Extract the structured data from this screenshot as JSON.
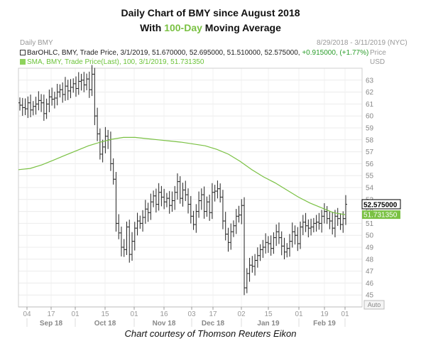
{
  "header": {
    "title_line1": "Daily Chart of BMY since August 2018",
    "title_line2_pre": "With ",
    "title_line2_highlight": "100-Day",
    "title_line2_post": " Moving Average",
    "highlight_color": "#7ac143"
  },
  "chart_label": "Daily BMY",
  "date_range": "8/29/2018 - 3/11/2019 (NYC)",
  "price_label": "Price",
  "currency_label": "USD",
  "legend": {
    "ohlc_text": "BarOHLC, BMY, Trade Price, 3/1/2019, 51.670000, 52.695000, 51.510000, 52.575000, ",
    "ohlc_change": "+0.915000, (+1.77%)",
    "sma_text": "SMA, BMY, Trade Price(Last), 100, 3/1/2019, 51.731350"
  },
  "footer": "Chart courtesy of Thomson Reuters Eikon",
  "chart_data": {
    "type": "line",
    "symbol": "BMY",
    "ylim": [
      44,
      64
    ],
    "yticks": [
      45,
      46,
      47,
      48,
      49,
      50,
      51,
      52,
      53,
      54,
      55,
      56,
      57,
      58,
      59,
      60,
      61,
      62,
      63
    ],
    "x_day_ticks": [
      "04",
      "17",
      "01",
      "15",
      "01",
      "16",
      "03",
      "17",
      "02",
      "15",
      "01",
      "19",
      "01"
    ],
    "x_month_labels": [
      "Sep 18",
      "Oct 18",
      "Nov 18",
      "Dec 18",
      "Jan 19",
      "Feb 19"
    ],
    "auto_label": "Auto",
    "last_price_label": "52.575000",
    "sma_label": "51.731350",
    "colors": {
      "ohlc": "#222222",
      "sma": "#7ac143",
      "last_price_tag": "#000000",
      "sma_tag": "#7ac143"
    },
    "closes": [
      60.9,
      60.7,
      60.6,
      61.1,
      60.5,
      60.8,
      61.0,
      61.3,
      61.1,
      60.2,
      61.0,
      61.6,
      61.4,
      61.5,
      62.0,
      62.2,
      61.8,
      62.5,
      62.1,
      62.4,
      62.7,
      62.3,
      62.9,
      63.0,
      62.6,
      63.1,
      62.2,
      63.5,
      60.0,
      58.5,
      56.8,
      57.4,
      58.3,
      58.0,
      56.0,
      54.7,
      51.0,
      50.2,
      49.0,
      48.8,
      50.7,
      48.4,
      49.5,
      50.6,
      51.2,
      51.0,
      51.5,
      52.2,
      51.9,
      52.8,
      53.3,
      52.6,
      53.6,
      53.2,
      52.8,
      53.1,
      52.5,
      52.9,
      53.6,
      54.5,
      53.1,
      53.8,
      53.4,
      52.6,
      51.6,
      50.9,
      52.0,
      52.9,
      53.4,
      52.0,
      52.8,
      51.9,
      53.6,
      53.7,
      53.9,
      53.2,
      51.2,
      50.1,
      49.4,
      50.3,
      50.8,
      51.6,
      51.7,
      52.5,
      45.6,
      46.8,
      47.5,
      47.4,
      47.9,
      48.3,
      48.8,
      49.0,
      49.4,
      49.3,
      48.9,
      49.8,
      50.3,
      49.8,
      49.1,
      48.6,
      48.9,
      49.5,
      50.3,
      50.0,
      49.3,
      50.7,
      51.1,
      50.8,
      50.6,
      50.7,
      51.0,
      51.1,
      51.0,
      51.6,
      52.0,
      51.4,
      51.2,
      50.6,
      51.6,
      51.4,
      50.9,
      51.4,
      52.6
    ],
    "sma": [
      55.5,
      55.6,
      55.9,
      56.3,
      56.7,
      57.1,
      57.5,
      57.8,
      58.05,
      58.2,
      58.2,
      58.1,
      58.0,
      57.9,
      57.8,
      57.65,
      57.5,
      57.2,
      56.8,
      56.2,
      55.5,
      54.9,
      54.4,
      53.8,
      53.2,
      52.7,
      52.3,
      51.9,
      51.73
    ],
    "last": {
      "date": "3/1/2019",
      "open": 51.67,
      "high": 52.695,
      "low": 51.51,
      "close": 52.575,
      "change": 0.915,
      "change_pct": 1.77,
      "sma100": 51.73135
    }
  }
}
